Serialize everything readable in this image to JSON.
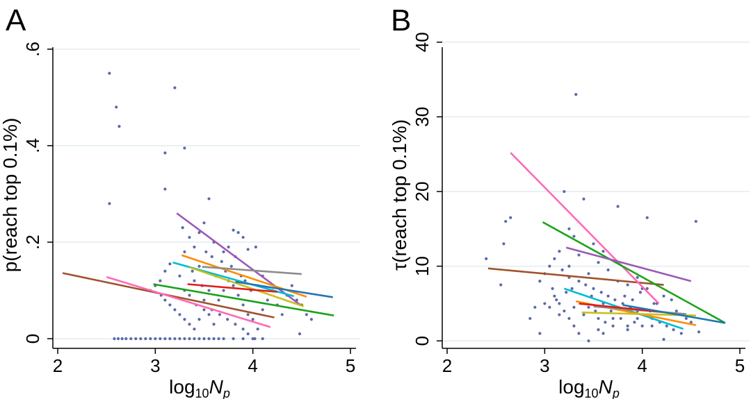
{
  "chart_data": [
    {
      "panel": "A",
      "type": "scatter",
      "ylabel": "p(reach top 0.1%)",
      "xlabel_main": "log",
      "xlabel_sub": "10",
      "xlabel_var": "N",
      "xlabel_var_sub": "p",
      "xlim": [
        1.95,
        5.1
      ],
      "ylim": [
        -0.02,
        0.63
      ],
      "xticks": [
        {
          "v": 2,
          "label": "2"
        },
        {
          "v": 3,
          "label": "3"
        },
        {
          "v": 4,
          "label": "4"
        },
        {
          "v": 5,
          "label": "5"
        }
      ],
      "yticks": [
        {
          "v": 0,
          "label": "0"
        },
        {
          "v": 0.2,
          "label": ".2"
        },
        {
          "v": 0.4,
          "label": ".4"
        },
        {
          "v": 0.6,
          "label": ".6"
        }
      ],
      "grid": true,
      "points": [
        [
          2.53,
          0.55
        ],
        [
          2.6,
          0.48
        ],
        [
          2.63,
          0.44
        ],
        [
          2.53,
          0.28
        ],
        [
          3.2,
          0.52
        ],
        [
          3.1,
          0.385
        ],
        [
          3.3,
          0.395
        ],
        [
          3.1,
          0.31
        ],
        [
          3.55,
          0.29
        ],
        [
          3.5,
          0.24
        ],
        [
          3.28,
          0.23
        ],
        [
          3.35,
          0.21
        ],
        [
          3.45,
          0.22
        ],
        [
          3.4,
          0.19
        ],
        [
          3.3,
          0.18
        ],
        [
          3.6,
          0.2
        ],
        [
          3.52,
          0.18
        ],
        [
          3.8,
          0.225
        ],
        [
          3.85,
          0.22
        ],
        [
          3.9,
          0.21
        ],
        [
          3.75,
          0.19
        ],
        [
          3.7,
          0.18
        ],
        [
          3.95,
          0.185
        ],
        [
          4.03,
          0.19
        ],
        [
          3.82,
          0.17
        ],
        [
          3.68,
          0.16
        ],
        [
          3.58,
          0.17
        ],
        [
          3.45,
          0.15
        ],
        [
          3.38,
          0.14
        ],
        [
          3.25,
          0.13
        ],
        [
          3.15,
          0.155
        ],
        [
          3.1,
          0.14
        ],
        [
          3.05,
          0.12
        ],
        [
          3.0,
          0.11
        ],
        [
          2.95,
          0.1
        ],
        [
          3.06,
          0.09
        ],
        [
          3.1,
          0.08
        ],
        [
          3.15,
          0.07
        ],
        [
          3.2,
          0.06
        ],
        [
          3.25,
          0.05
        ],
        [
          3.3,
          0.04
        ],
        [
          3.35,
          0.03
        ],
        [
          3.4,
          0.02
        ],
        [
          3.45,
          0.04
        ],
        [
          3.5,
          0.06
        ],
        [
          3.55,
          0.05
        ],
        [
          3.6,
          0.03
        ],
        [
          3.65,
          0.08
        ],
        [
          3.7,
          0.1
        ],
        [
          3.75,
          0.12
        ],
        [
          3.8,
          0.11
        ],
        [
          3.85,
          0.09
        ],
        [
          3.9,
          0.07
        ],
        [
          3.95,
          0.05
        ],
        [
          4.0,
          0.04
        ],
        [
          4.05,
          0.02
        ],
        [
          4.1,
          0.06
        ],
        [
          4.15,
          0.08
        ],
        [
          4.2,
          0.1
        ],
        [
          4.25,
          0.07
        ],
        [
          4.3,
          0.05
        ],
        [
          4.35,
          0.09
        ],
        [
          4.4,
          0.11
        ],
        [
          4.45,
          0.08
        ],
        [
          4.5,
          0.07
        ],
        [
          4.55,
          0.05
        ],
        [
          4.6,
          0.04
        ],
        [
          4.48,
          0.01
        ],
        [
          3.4,
          0.12
        ],
        [
          3.48,
          0.11
        ],
        [
          3.55,
          0.1
        ],
        [
          3.62,
          0.13
        ],
        [
          3.72,
          0.14
        ],
        [
          3.78,
          0.15
        ],
        [
          3.88,
          0.13
        ],
        [
          3.92,
          0.12
        ],
        [
          3.98,
          0.1
        ],
        [
          4.05,
          0.11
        ],
        [
          4.1,
          0.13
        ],
        [
          3.3,
          0.1
        ],
        [
          3.35,
          0.09
        ],
        [
          3.42,
          0.07
        ],
        [
          3.5,
          0.08
        ],
        [
          3.58,
          0.06
        ],
        [
          3.66,
          0.05
        ],
        [
          3.74,
          0.04
        ],
        [
          3.82,
          0.03
        ],
        [
          3.9,
          0.02
        ],
        [
          3.95,
          0.01
        ],
        [
          4.02,
          0.0
        ],
        [
          2.58,
          0
        ],
        [
          2.62,
          0
        ],
        [
          2.66,
          0
        ],
        [
          2.7,
          0
        ],
        [
          2.75,
          0
        ],
        [
          2.8,
          0
        ],
        [
          2.85,
          0
        ],
        [
          2.9,
          0
        ],
        [
          2.95,
          0
        ],
        [
          3.0,
          0
        ],
        [
          3.05,
          0
        ],
        [
          3.1,
          0
        ],
        [
          3.15,
          0
        ],
        [
          3.2,
          0
        ],
        [
          3.25,
          0
        ],
        [
          3.3,
          0
        ],
        [
          3.35,
          0
        ],
        [
          3.4,
          0
        ],
        [
          3.45,
          0
        ],
        [
          3.5,
          0
        ],
        [
          3.55,
          0
        ],
        [
          3.6,
          0
        ],
        [
          3.65,
          0
        ],
        [
          3.7,
          0
        ],
        [
          3.8,
          0
        ],
        [
          3.9,
          0
        ],
        [
          4.0,
          0
        ],
        [
          4.1,
          0
        ]
      ],
      "lines": [
        {
          "color": "#a0522d",
          "x": [
            2.05,
            4.22
          ],
          "y": [
            0.136,
            0.044
          ]
        },
        {
          "color": "#ff69b4",
          "x": [
            2.5,
            4.18
          ],
          "y": [
            0.128,
            0.024
          ]
        },
        {
          "color": "#1aa31a",
          "x": [
            2.98,
            4.83
          ],
          "y": [
            0.113,
            0.048
          ]
        },
        {
          "color": "#9b59b6",
          "x": [
            3.22,
            4.5
          ],
          "y": [
            0.26,
            0.068
          ]
        },
        {
          "color": "#00bcd4",
          "x": [
            3.18,
            4.42
          ],
          "y": [
            0.158,
            0.088
          ]
        },
        {
          "color": "#ff8c00",
          "x": [
            3.27,
            4.55
          ],
          "y": [
            0.173,
            0.087
          ]
        },
        {
          "color": "#c7c01a",
          "x": [
            3.35,
            4.52
          ],
          "y": [
            0.148,
            0.067
          ]
        },
        {
          "color": "#8c8c8c",
          "x": [
            3.48,
            4.5
          ],
          "y": [
            0.149,
            0.134
          ]
        },
        {
          "color": "#e31a1c",
          "x": [
            3.33,
            4.25
          ],
          "y": [
            0.113,
            0.097
          ]
        },
        {
          "color": "#1f77b4",
          "x": [
            3.82,
            4.82
          ],
          "y": [
            0.118,
            0.086
          ]
        }
      ]
    },
    {
      "panel": "B",
      "type": "scatter",
      "ylabel": "τ(reach top 0.1%)",
      "xlabel_main": "log",
      "xlabel_sub": "10",
      "xlabel_var": "N",
      "xlabel_var_sub": "p",
      "xlim": [
        1.95,
        5.1
      ],
      "ylim": [
        -1,
        41
      ],
      "xticks": [
        {
          "v": 2,
          "label": "2"
        },
        {
          "v": 3,
          "label": "3"
        },
        {
          "v": 4,
          "label": "4"
        },
        {
          "v": 5,
          "label": "5"
        }
      ],
      "yticks": [
        {
          "v": 0,
          "label": "0"
        },
        {
          "v": 10,
          "label": "10"
        },
        {
          "v": 20,
          "label": "20"
        },
        {
          "v": 30,
          "label": "30"
        },
        {
          "v": 40,
          "label": "40"
        }
      ],
      "grid": true,
      "points": [
        [
          2.6,
          16
        ],
        [
          2.65,
          16.5
        ],
        [
          2.58,
          13
        ],
        [
          2.4,
          11
        ],
        [
          2.55,
          7.5
        ],
        [
          3.32,
          33
        ],
        [
          3.2,
          20
        ],
        [
          3.25,
          15
        ],
        [
          3.3,
          14
        ],
        [
          3.4,
          19
        ],
        [
          3.75,
          18
        ],
        [
          4.05,
          16.5
        ],
        [
          4.55,
          16
        ],
        [
          3.5,
          13
        ],
        [
          3.6,
          12
        ],
        [
          3.15,
          12
        ],
        [
          3.1,
          11
        ],
        [
          3.05,
          10
        ],
        [
          3.0,
          9
        ],
        [
          2.95,
          8
        ],
        [
          3.18,
          9.5
        ],
        [
          3.25,
          8.5
        ],
        [
          3.35,
          8
        ],
        [
          3.42,
          7.5
        ],
        [
          3.5,
          7
        ],
        [
          3.58,
          6.5
        ],
        [
          3.65,
          6
        ],
        [
          3.72,
          5.5
        ],
        [
          3.8,
          5
        ],
        [
          3.88,
          4.5
        ],
        [
          3.95,
          4
        ],
        [
          4.02,
          3.5
        ],
        [
          4.1,
          3
        ],
        [
          4.18,
          2.5
        ],
        [
          4.25,
          2
        ],
        [
          4.32,
          1.5
        ],
        [
          4.4,
          1
        ],
        [
          3.1,
          6
        ],
        [
          3.15,
          5
        ],
        [
          3.2,
          4
        ],
        [
          3.25,
          3
        ],
        [
          3.3,
          2
        ],
        [
          3.35,
          1
        ],
        [
          3.4,
          3.5
        ],
        [
          3.45,
          4.5
        ],
        [
          3.55,
          3
        ],
        [
          3.62,
          2.5
        ],
        [
          3.7,
          2
        ],
        [
          3.78,
          3
        ],
        [
          3.85,
          2
        ],
        [
          3.92,
          2.5
        ],
        [
          4.0,
          2
        ],
        [
          4.08,
          4
        ],
        [
          4.15,
          5
        ],
        [
          4.22,
          6
        ],
        [
          4.3,
          5.5
        ],
        [
          4.35,
          4
        ],
        [
          4.45,
          3
        ],
        [
          4.5,
          2.5
        ],
        [
          4.58,
          1.2
        ],
        [
          3.05,
          4.5
        ],
        [
          3.12,
          5.5
        ],
        [
          3.22,
          6.5
        ],
        [
          3.28,
          7
        ],
        [
          3.38,
          5
        ],
        [
          3.48,
          6
        ],
        [
          3.52,
          4
        ],
        [
          3.6,
          5
        ],
        [
          3.68,
          4
        ],
        [
          3.75,
          4.5
        ],
        [
          3.82,
          6
        ],
        [
          3.9,
          5.5
        ],
        [
          3.98,
          6.5
        ],
        [
          4.05,
          7
        ],
        [
          4.12,
          5
        ],
        [
          2.9,
          4.5
        ],
        [
          2.85,
          3
        ],
        [
          2.95,
          1
        ],
        [
          3.0,
          5
        ],
        [
          3.08,
          7
        ],
        [
          3.6,
          1
        ],
        [
          3.7,
          3
        ],
        [
          3.85,
          1.5
        ],
        [
          3.95,
          3
        ],
        [
          4.1,
          2
        ],
        [
          4.22,
          0.2
        ],
        [
          3.45,
          0
        ],
        [
          3.55,
          1.5
        ],
        [
          3.25,
          10
        ],
        [
          3.35,
          11.5
        ],
        [
          3.45,
          9
        ],
        [
          3.55,
          10.5
        ],
        [
          3.65,
          9.5
        ],
        [
          3.75,
          8
        ],
        [
          3.85,
          7.5
        ],
        [
          3.95,
          8.5
        ],
        [
          4.0,
          7
        ],
        [
          4.15,
          7.5
        ],
        [
          3.15,
          3.5
        ],
        [
          3.3,
          4.5
        ]
      ],
      "lines": [
        {
          "color": "#a0522d",
          "x": [
            2.42,
            4.22
          ],
          "y": [
            9.7,
            7.5
          ]
        },
        {
          "color": "#ff69b4",
          "x": [
            2.65,
            4.17
          ],
          "y": [
            25.2,
            5.0
          ]
        },
        {
          "color": "#1aa31a",
          "x": [
            2.98,
            4.85
          ],
          "y": [
            15.9,
            2.4
          ]
        },
        {
          "color": "#9b59b6",
          "x": [
            3.22,
            4.5
          ],
          "y": [
            12.5,
            8.0
          ]
        },
        {
          "color": "#00bcd4",
          "x": [
            3.2,
            4.42
          ],
          "y": [
            7.0,
            1.6
          ]
        },
        {
          "color": "#ff8c00",
          "x": [
            3.32,
            4.55
          ],
          "y": [
            5.3,
            2.1
          ]
        },
        {
          "color": "#c7c01a",
          "x": [
            3.38,
            4.55
          ],
          "y": [
            3.8,
            3.4
          ]
        },
        {
          "color": "#8c8c8c",
          "x": [
            3.5,
            4.45
          ],
          "y": [
            4.6,
            3.6
          ]
        },
        {
          "color": "#e31a1c",
          "x": [
            3.35,
            4.25
          ],
          "y": [
            5.0,
            3.8
          ]
        },
        {
          "color": "#1f77b4",
          "x": [
            3.8,
            4.85
          ],
          "y": [
            4.8,
            2.4
          ]
        }
      ]
    }
  ]
}
